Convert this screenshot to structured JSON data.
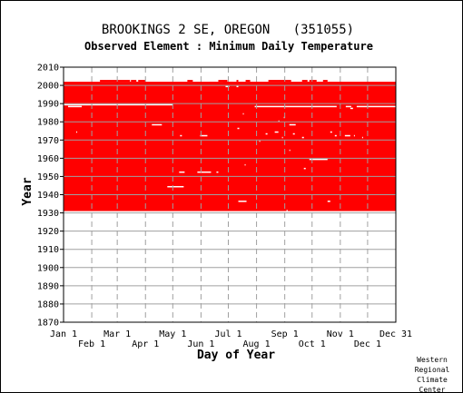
{
  "chart_data": {
    "type": "heatmap",
    "title": "BROOKINGS 2 SE, OREGON   (351055)",
    "subtitle": "Observed Element : Minimum Daily Temperature",
    "xlabel": "Day of Year",
    "ylabel": "Year",
    "credit": [
      "Western",
      "Regional",
      "Climate",
      "Center"
    ],
    "fill_color": "#ff0000",
    "gap_color": "#ffffff",
    "grid": true,
    "x_range_days": [
      0,
      365
    ],
    "ylim": [
      1870,
      2010
    ],
    "y_ticks": [
      2010,
      2000,
      1990,
      1980,
      1970,
      1960,
      1950,
      1940,
      1930,
      1920,
      1910,
      1900,
      1890,
      1880,
      1870
    ],
    "x_ticks_upper": [
      {
        "label": "Jan 1",
        "day": 0
      },
      {
        "label": "Mar 1",
        "day": 59
      },
      {
        "label": "May 1",
        "day": 120
      },
      {
        "label": "Jul 1",
        "day": 181
      },
      {
        "label": "Sep 1",
        "day": 243
      },
      {
        "label": "Nov 1",
        "day": 304
      },
      {
        "label": "Dec 31",
        "day": 365
      }
    ],
    "x_ticks_lower": [
      {
        "label": "Feb 1",
        "day": 31
      },
      {
        "label": "Apr 1",
        "day": 90
      },
      {
        "label": "Jun 1",
        "day": 151
      },
      {
        "label": "Aug 1",
        "day": 212
      },
      {
        "label": "Oct 1",
        "day": 273
      },
      {
        "label": "Dec 1",
        "day": 334
      }
    ],
    "data_coverage": {
      "year_start": 1931,
      "year_end": 2001
    },
    "partial_years": [
      {
        "year": 2002,
        "ranges": [
          [
            40,
            73
          ],
          [
            74,
            80
          ],
          [
            82,
            90
          ],
          [
            136,
            142
          ],
          [
            170,
            180
          ],
          [
            190,
            192
          ],
          [
            200,
            205
          ],
          [
            225,
            250
          ],
          [
            262,
            268
          ],
          [
            270,
            278
          ],
          [
            285,
            290
          ]
        ]
      },
      {
        "year": 2001,
        "ranges": [
          [
            160,
            168
          ],
          [
            175,
            186
          ]
        ]
      }
    ],
    "missing_segments": [
      {
        "year": 1999,
        "days": [
          178,
          182
        ]
      },
      {
        "year": 1999,
        "days": [
          190,
          192
        ]
      },
      {
        "year": 1989,
        "days": [
          0,
          120
        ]
      },
      {
        "year": 1988,
        "days": [
          5,
          20
        ]
      },
      {
        "year": 1988,
        "days": [
          210,
          300
        ]
      },
      {
        "year": 1988,
        "days": [
          310,
          316
        ]
      },
      {
        "year": 1988,
        "days": [
          322,
          365
        ]
      },
      {
        "year": 1987,
        "days": [
          315,
          318
        ]
      },
      {
        "year": 1984,
        "days": [
          197,
          198
        ]
      },
      {
        "year": 1982,
        "days": [
          242,
          243
        ]
      },
      {
        "year": 1980,
        "days": [
          236,
          237
        ]
      },
      {
        "year": 1978,
        "days": [
          97,
          108
        ]
      },
      {
        "year": 1978,
        "days": [
          248,
          255
        ]
      },
      {
        "year": 1976,
        "days": [
          191,
          193
        ]
      },
      {
        "year": 1974,
        "days": [
          14,
          15
        ]
      },
      {
        "year": 1974,
        "days": [
          232,
          236
        ]
      },
      {
        "year": 1974,
        "days": [
          293,
          295
        ]
      },
      {
        "year": 1973,
        "days": [
          252,
          254
        ]
      },
      {
        "year": 1973,
        "days": [
          222,
          224
        ]
      },
      {
        "year": 1972,
        "days": [
          128,
          130
        ]
      },
      {
        "year": 1972,
        "days": [
          150,
          158
        ]
      },
      {
        "year": 1972,
        "days": [
          298,
          300
        ]
      },
      {
        "year": 1972,
        "days": [
          309,
          315
        ]
      },
      {
        "year": 1972,
        "days": [
          319,
          320
        ]
      },
      {
        "year": 1971,
        "days": [
          240,
          241
        ]
      },
      {
        "year": 1971,
        "days": [
          262,
          264
        ]
      },
      {
        "year": 1971,
        "days": [
          328,
          329
        ]
      },
      {
        "year": 1969,
        "days": [
          215,
          216
        ]
      },
      {
        "year": 1964,
        "days": [
          248,
          249
        ]
      },
      {
        "year": 1959,
        "days": [
          270,
          290
        ]
      },
      {
        "year": 1956,
        "days": [
          199,
          200
        ]
      },
      {
        "year": 1954,
        "days": [
          264,
          266
        ]
      },
      {
        "year": 1952,
        "days": [
          127,
          133
        ]
      },
      {
        "year": 1952,
        "days": [
          147,
          162
        ]
      },
      {
        "year": 1952,
        "days": [
          168,
          170
        ]
      },
      {
        "year": 1944,
        "days": [
          114,
          132
        ]
      },
      {
        "year": 1936,
        "days": [
          192,
          201
        ]
      },
      {
        "year": 1936,
        "days": [
          290,
          293
        ]
      },
      {
        "year": 1931,
        "days": [
          245,
          246
        ]
      }
    ]
  }
}
